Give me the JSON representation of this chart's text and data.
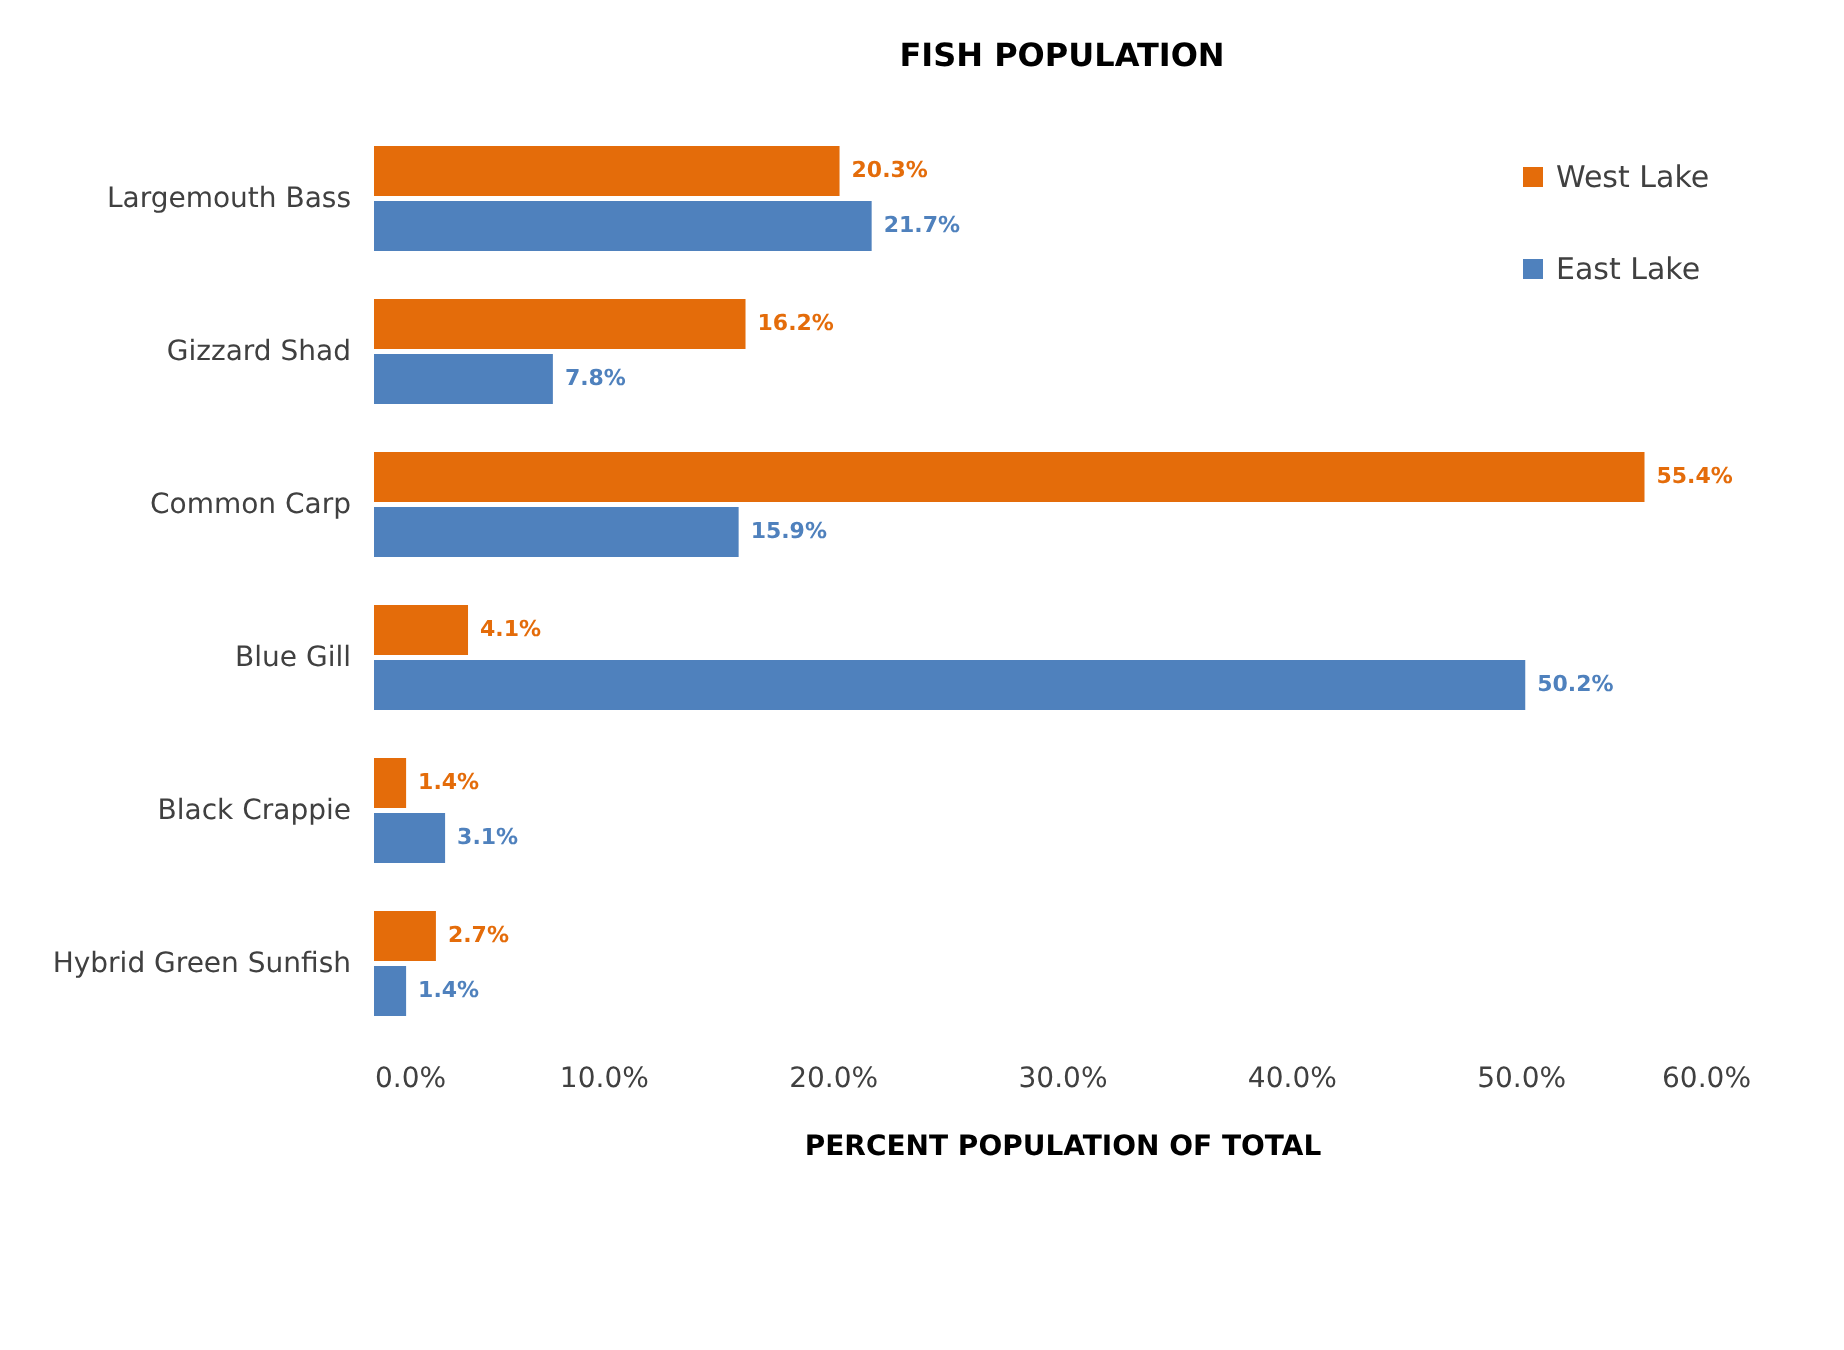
{
  "chart_data": {
    "type": "bar",
    "orientation": "horizontal",
    "title": "FISH POPULATION",
    "xlabel": "PERCENT POPULATION OF TOTAL",
    "categories": [
      "Largemouth Bass",
      "Gizzard Shad",
      "Common Carp",
      "Blue Gill",
      "Black Crappie",
      "Hybrid Green Sunfish"
    ],
    "series": [
      {
        "name": "West Lake",
        "color": "#e46c0a",
        "values": [
          20.3,
          16.2,
          55.4,
          4.1,
          1.4,
          2.7
        ],
        "value_labels": [
          "20.3%",
          "16.2%",
          "55.4%",
          "4.1%",
          "1.4%",
          "2.7%"
        ]
      },
      {
        "name": "East Lake",
        "color": "#4f81bd",
        "values": [
          21.7,
          7.8,
          15.9,
          50.2,
          3.1,
          1.4
        ],
        "value_labels": [
          "21.7%",
          "7.8%",
          "15.9%",
          "50.2%",
          "3.1%",
          "1.4%"
        ]
      }
    ],
    "xlim": [
      0,
      60
    ],
    "xticks": [
      {
        "value": 0,
        "label": "0.0%"
      },
      {
        "value": 10,
        "label": "10.0%"
      },
      {
        "value": 20,
        "label": "20.0%"
      },
      {
        "value": 30,
        "label": "30.0%"
      },
      {
        "value": 40,
        "label": "40.0%"
      },
      {
        "value": 50,
        "label": "50.0%"
      },
      {
        "value": 60,
        "label": "60.0%"
      }
    ],
    "grid": false,
    "legend": "top right"
  }
}
